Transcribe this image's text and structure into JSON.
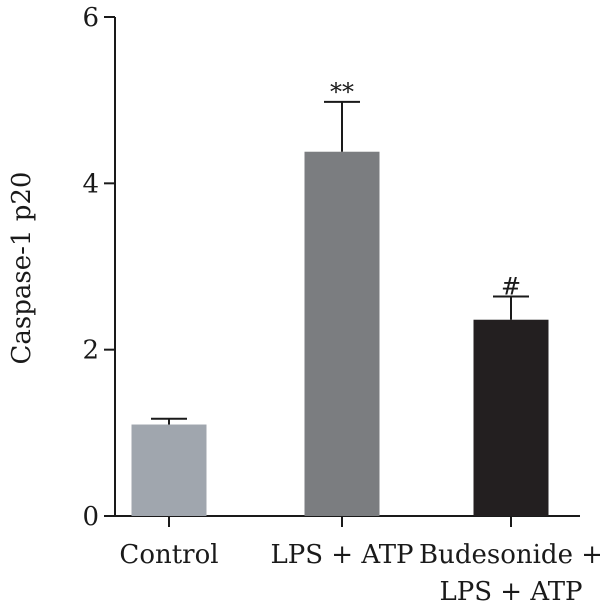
{
  "chart_data": {
    "type": "bar",
    "title": "",
    "xlabel": "",
    "ylabel": "Caspase-1 p20",
    "ylim": [
      0,
      6
    ],
    "yticks": [
      0,
      2,
      4,
      6
    ],
    "grid": false,
    "categories": [
      [
        "Control"
      ],
      [
        "LPS + ATP"
      ],
      [
        "Budesonide +",
        "LPS + ATP"
      ]
    ],
    "values": [
      1.1,
      4.38,
      2.36
    ],
    "error_upper": [
      0.07,
      0.6,
      0.28
    ],
    "annotations": [
      "",
      "**",
      "#"
    ],
    "colors": [
      "#a0a6ae",
      "#7b7d80",
      "#231f20"
    ]
  }
}
